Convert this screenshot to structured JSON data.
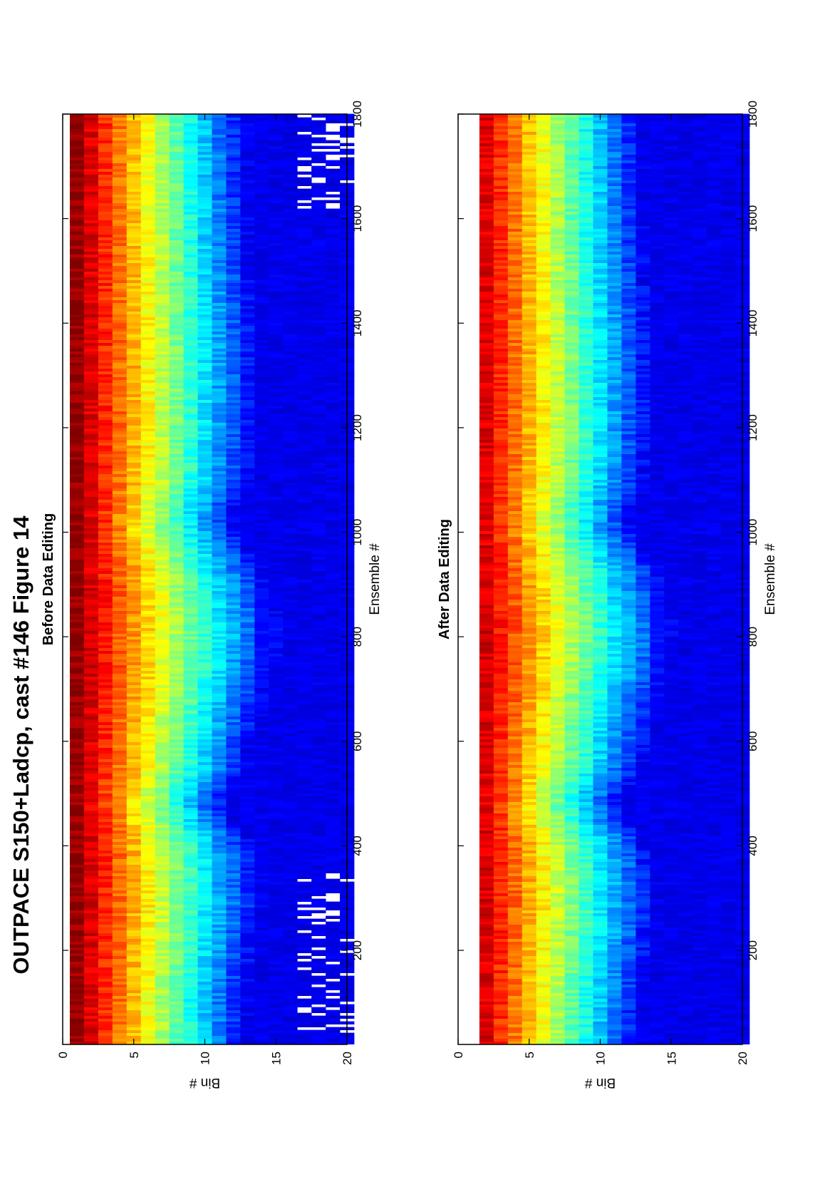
{
  "figure": {
    "title": "OUTPACE S150+Ladcp, cast #146  Figure 14",
    "orientation": "rotated 90° counter-clockwise (landscape page)"
  },
  "colormap": "jet",
  "chart_data": [
    {
      "type": "heatmap",
      "title": "Before Data Editing",
      "xlabel": "Ensemble #",
      "ylabel": "Bin #",
      "xlim": [
        20,
        1800
      ],
      "ylim": [
        0,
        20
      ],
      "y_reversed": true,
      "xticks": [
        200,
        400,
        600,
        800,
        1000,
        1200,
        1400,
        1600,
        1800
      ],
      "yticks": [
        0,
        5,
        10,
        15,
        20
      ],
      "bin_range": [
        1,
        20
      ],
      "gaps": "white (missing) cells in bins 17-20, mainly ensembles 40-350 and 1620-1800",
      "description_of_field": "intensity decreases with bin: bins 1-2 red, 3-4 orange/yellow, 5-7 green, 8-11 cyan/light blue, 12-20 dark blue; near-surface tongue of higher values dips deepest around ensembles 650-950"
    },
    {
      "type": "heatmap",
      "title": "After Data Editing",
      "xlabel": "Ensemble #",
      "ylabel": "Bin #",
      "xlim": [
        20,
        1800
      ],
      "ylim": [
        0,
        20
      ],
      "y_reversed": true,
      "xticks": [
        200,
        400,
        600,
        800,
        1000,
        1200,
        1400,
        1600,
        1800
      ],
      "yticks": [
        0,
        5,
        10,
        15,
        20
      ],
      "bin_range": [
        2,
        20
      ],
      "gaps": "bin 1 removed (white); few remaining gaps",
      "description_of_field": "same structure as before editing, top bin blanked"
    }
  ]
}
